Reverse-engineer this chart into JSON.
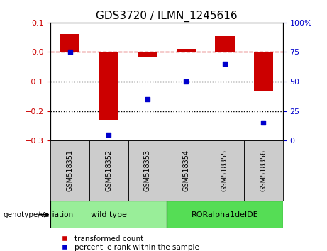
{
  "title": "GDS3720 / ILMN_1245616",
  "samples": [
    "GSM518351",
    "GSM518352",
    "GSM518353",
    "GSM518354",
    "GSM518355",
    "GSM518356"
  ],
  "bar_values": [
    0.06,
    -0.23,
    -0.015,
    0.01,
    0.055,
    -0.13
  ],
  "percentile_values": [
    75,
    5,
    35,
    50,
    65,
    15
  ],
  "ylim_left": [
    -0.3,
    0.1
  ],
  "ylim_right": [
    0,
    100
  ],
  "yticks_left": [
    -0.3,
    -0.2,
    -0.1,
    0.0,
    0.1
  ],
  "yticks_right": [
    0,
    25,
    50,
    75,
    100
  ],
  "bar_color": "#cc0000",
  "point_color": "#0000cc",
  "dashed_line_color": "#cc0000",
  "dotted_line_color": "#000000",
  "group1_label": "wild type",
  "group2_label": "RORalpha1delDE",
  "group1_indices": [
    0,
    1,
    2
  ],
  "group2_indices": [
    3,
    4,
    5
  ],
  "group1_color": "#99ee99",
  "group2_color": "#55dd55",
  "genotype_label": "genotype/variation",
  "legend_bar_label": "transformed count",
  "legend_point_label": "percentile rank within the sample",
  "bar_width": 0.5,
  "figsize": [
    4.61,
    3.54
  ],
  "dpi": 100
}
